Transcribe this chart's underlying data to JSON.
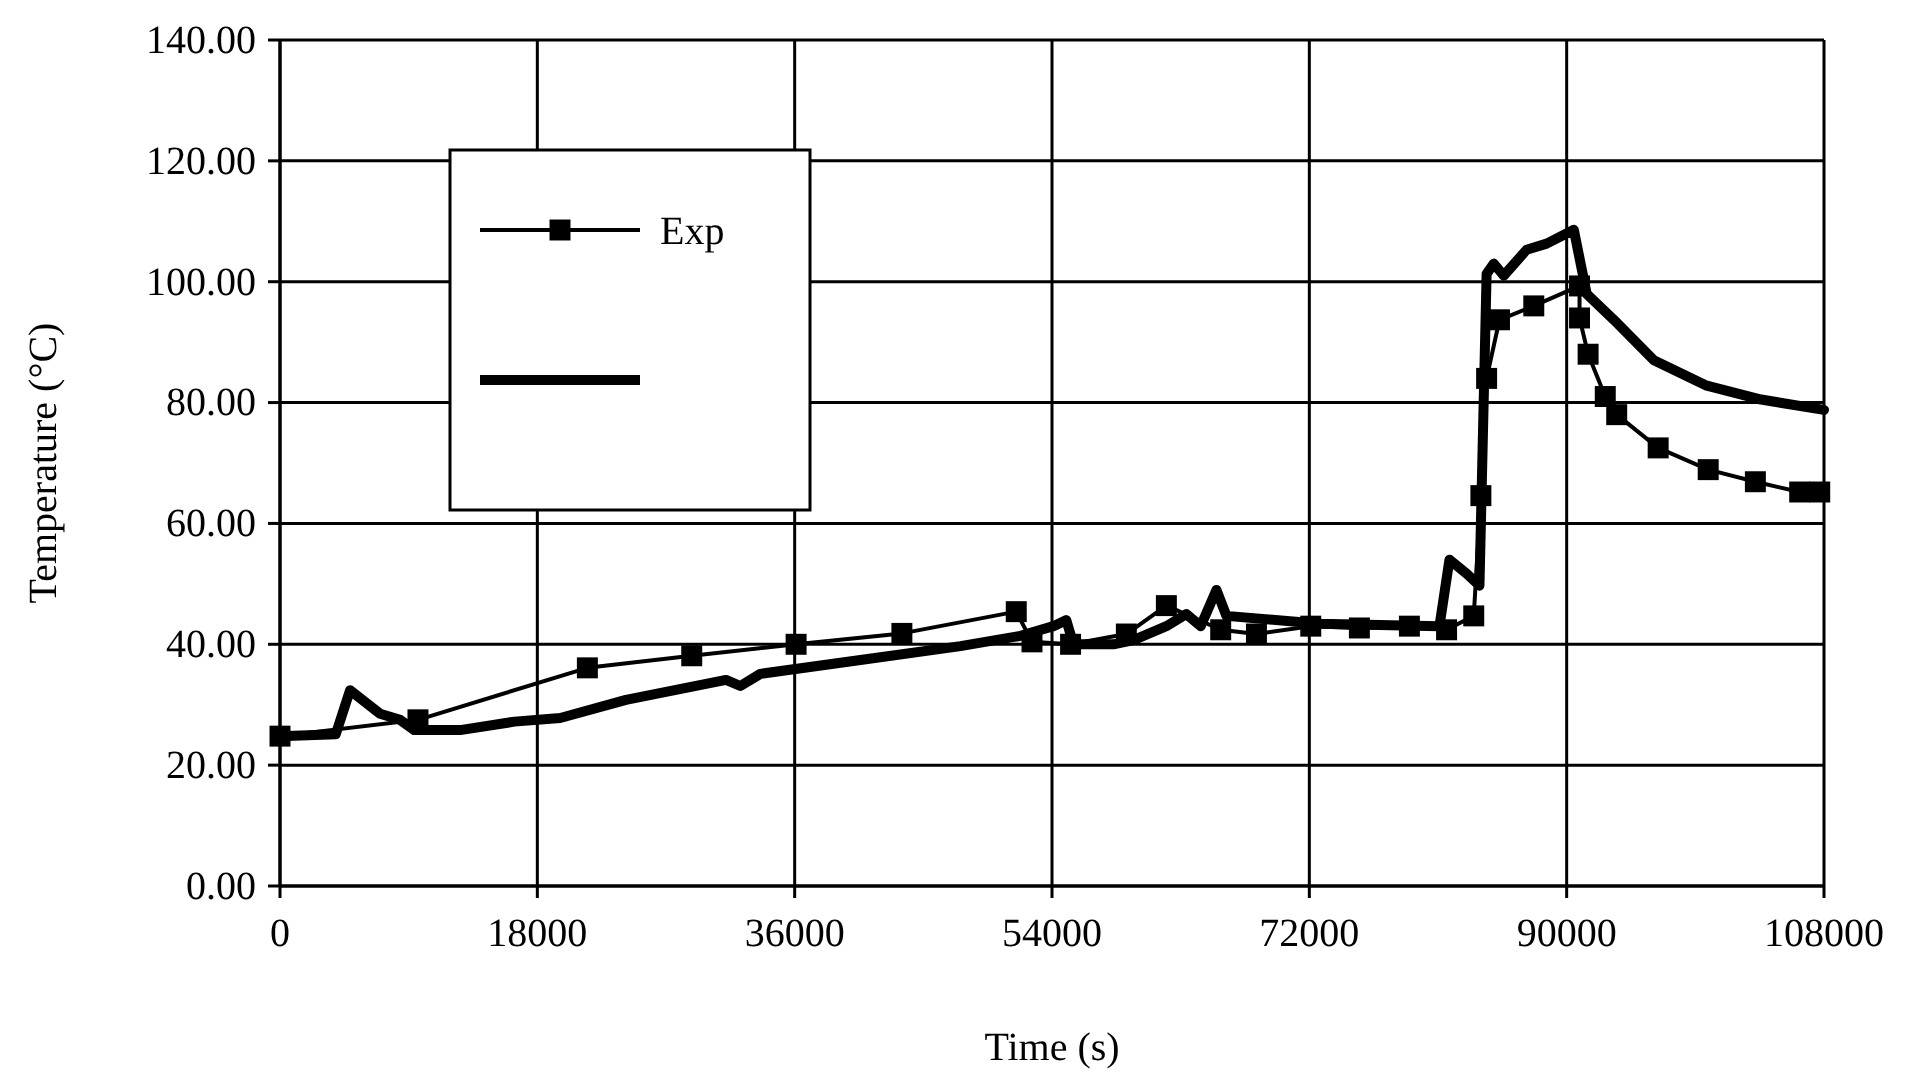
{
  "chart_data": {
    "type": "line",
    "xlabel": "Time (s)",
    "ylabel": "Temperature (°C)",
    "xlim": [
      0,
      108000
    ],
    "xticks": [
      0,
      18000,
      36000,
      54000,
      72000,
      90000,
      108000
    ],
    "ylim": [
      0,
      140
    ],
    "yticks": [
      {
        "value": 0,
        "label": "0.00"
      },
      {
        "value": 20,
        "label": "20.00"
      },
      {
        "value": 40,
        "label": "40.00"
      },
      {
        "value": 60,
        "label": "60.00"
      },
      {
        "value": 80,
        "label": "80.00"
      },
      {
        "value": 100,
        "label": "100.00"
      },
      {
        "value": 120,
        "label": "120.00"
      },
      {
        "value": 140,
        "label": "140.00"
      }
    ],
    "grid": true,
    "legend": "top left",
    "series": [
      {
        "name": "Exp",
        "color": "#000000",
        "marker": "square",
        "x": [
          0,
          9650,
          21500,
          28800,
          36100,
          43500,
          51500,
          52600,
          55300,
          59200,
          62000,
          65800,
          68300,
          72100,
          75500,
          79000,
          81600,
          83500,
          84000,
          84400,
          85300,
          87700,
          90900,
          90900,
          91500,
          92700,
          93500,
          96400,
          99900,
          103200,
          106300,
          107700
        ],
        "values": [
          24.8,
          27.5,
          36.1,
          38.1,
          40,
          41.8,
          45.4,
          40.4,
          40,
          41.7,
          46.4,
          42.4,
          41.7,
          43,
          42.7,
          43,
          42.4,
          44.7,
          64.6,
          84,
          93.7,
          96,
          99.3,
          94,
          88,
          81,
          78,
          72.5,
          68.9,
          66.9,
          65.2,
          65.2
        ]
      },
      {
        "color": "#000000",
        "marker": "none",
        "x": [
          0,
          3900,
          4900,
          7000,
          8400,
          9400,
          12600,
          16400,
          19600,
          24200,
          31200,
          32200,
          33600,
          40600,
          47600,
          51800,
          54100,
          55000,
          55500,
          58300,
          59700,
          62000,
          63400,
          64400,
          65500,
          66200,
          72700,
          81100,
          81800,
          83000,
          83900,
          84400,
          84900,
          85600,
          87200,
          88600,
          90500,
          91400,
          93300,
          96100,
          99800,
          103600,
          108000
        ],
        "values": [
          24.8,
          25.1,
          32.4,
          28.5,
          27.5,
          25.8,
          25.8,
          27.2,
          27.8,
          30.8,
          34.1,
          33.1,
          35.1,
          37.4,
          39.7,
          41.4,
          43,
          44,
          40,
          40,
          40.7,
          43,
          45,
          43,
          49,
          44.7,
          43.4,
          43,
          54,
          51.7,
          49.7,
          101.3,
          103,
          101,
          105.3,
          106.3,
          108.6,
          98,
          93.7,
          87,
          82.8,
          80.5,
          78.8
        ]
      }
    ]
  }
}
